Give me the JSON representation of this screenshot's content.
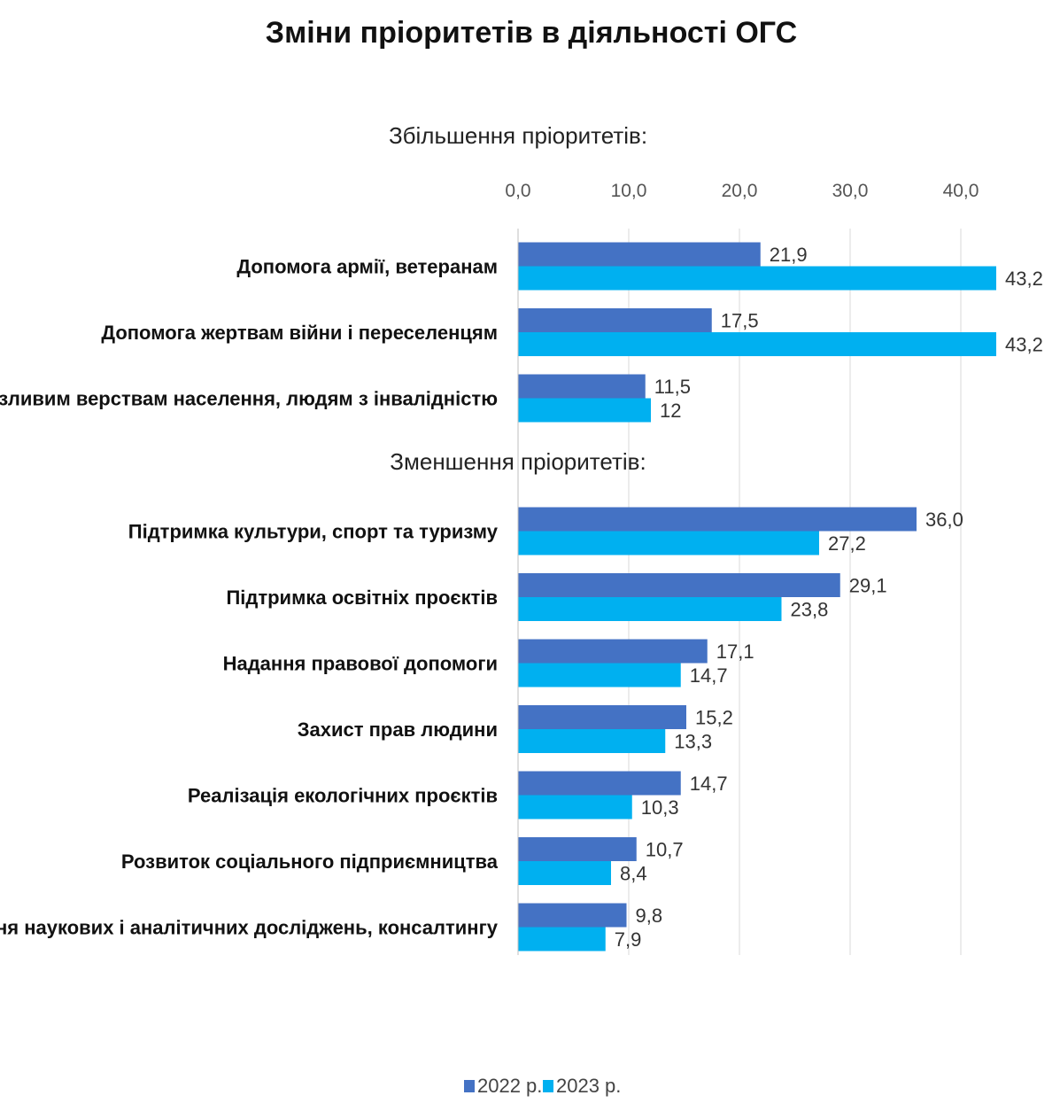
{
  "chart_data": {
    "type": "bar",
    "orientation": "horizontal",
    "title": "Зміни пріоритетів в діяльності ОГС",
    "xlim": [
      0,
      45
    ],
    "x_ticks": [
      "0,0",
      "10,0",
      "20,0",
      "30,0",
      "40,0"
    ],
    "x_tick_values": [
      0,
      10,
      20,
      30,
      40
    ],
    "grid": true,
    "legend_position": "bottom",
    "series": [
      {
        "name": "2022 р.",
        "color": "#4472C4"
      },
      {
        "name": "2023 р.",
        "color": "#00B0F0"
      }
    ],
    "groups": [
      {
        "label": "Збільшення пріоритетів:",
        "categories": [
          {
            "name": "Допомога армії, ветеранам",
            "values": [
              21.9,
              43.2
            ],
            "labels": [
              "21,9",
              "43,2"
            ]
          },
          {
            "name": "Допомога жертвам війни і переселенцям",
            "values": [
              17.5,
              43.2
            ],
            "labels": [
              "17,5",
              "43,2"
            ]
          },
          {
            "name": "Допомога вразливим верствам населення, людям з інвалідністю",
            "values": [
              11.5,
              12
            ],
            "labels": [
              "11,5",
              "12"
            ]
          }
        ]
      },
      {
        "label": "Зменшення пріоритетів:",
        "categories": [
          {
            "name": "Підтримка культури, спорт та туризму",
            "values": [
              36.0,
              27.2
            ],
            "labels": [
              "36,0",
              "27,2"
            ]
          },
          {
            "name": "Підтримка освітніх проєктів",
            "values": [
              29.1,
              23.8
            ],
            "labels": [
              "29,1",
              "23,8"
            ]
          },
          {
            "name": "Надання правової допомоги",
            "values": [
              17.1,
              14.7
            ],
            "labels": [
              "17,1",
              "14,7"
            ]
          },
          {
            "name": "Захист прав людини",
            "values": [
              15.2,
              13.3
            ],
            "labels": [
              "15,2",
              "13,3"
            ]
          },
          {
            "name": "Реалізація екологічних проєктів",
            "values": [
              14.7,
              10.3
            ],
            "labels": [
              "14,7",
              "10,3"
            ]
          },
          {
            "name": "Розвиток соціального підприємництва",
            "values": [
              10.7,
              8.4
            ],
            "labels": [
              "10,7",
              "8,4"
            ]
          },
          {
            "name": "Проведення наукових і аналітичних досліджень, консалтингу",
            "values": [
              9.8,
              7.9
            ],
            "labels": [
              "9,8",
              "7,9"
            ]
          }
        ]
      }
    ]
  }
}
